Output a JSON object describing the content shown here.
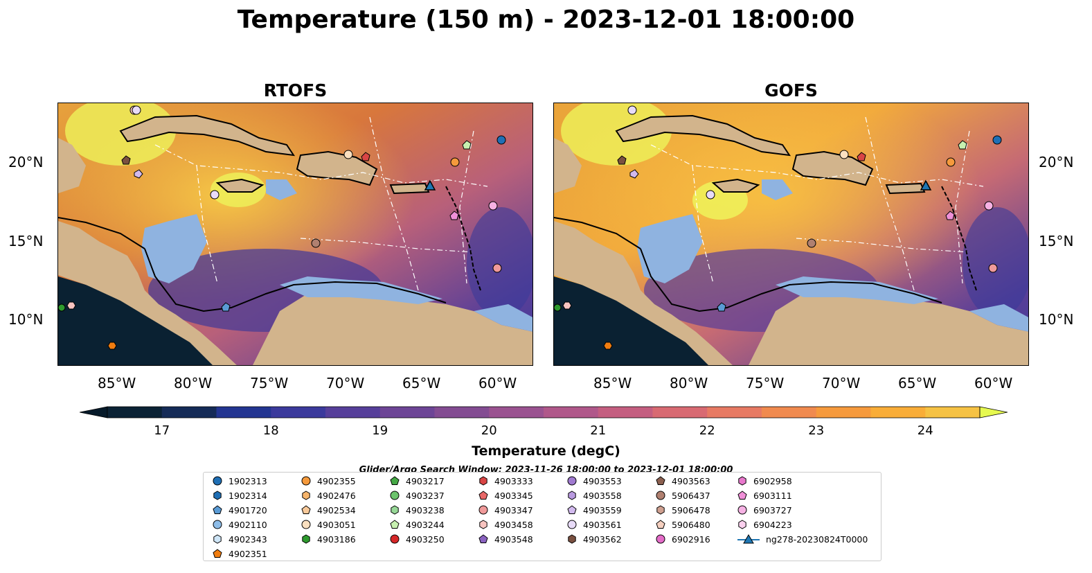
{
  "title": "Temperature (150 m) - 2023-12-01 18:00:00",
  "panels": [
    {
      "title": "RTOFS"
    },
    {
      "title": "GOFS"
    }
  ],
  "axes": {
    "lon_ticks": [
      "85°W",
      "80°W",
      "75°W",
      "70°W",
      "65°W",
      "60°W"
    ],
    "lat_ticks": [
      "20°N",
      "15°N",
      "10°N"
    ]
  },
  "colorbar": {
    "label": "Temperature (degC)",
    "ticks": [
      "17",
      "18",
      "19",
      "20",
      "21",
      "22",
      "23",
      "24"
    ],
    "min": 16.5,
    "max": 24.5,
    "colors": [
      "#0b2235",
      "#152b57",
      "#233591",
      "#3b3a9c",
      "#563f9a",
      "#6d4596",
      "#834c92",
      "#9a5290",
      "#b0588a",
      "#c45e80",
      "#d86a72",
      "#e77a63",
      "#f08a4f",
      "#f69a3d",
      "#f9ad38",
      "#f6c244"
    ],
    "extend_low_color": "#061a2a",
    "extend_high_color": "#e6f94f"
  },
  "map_colors": {
    "land": "#d2b48c",
    "shelf": "#8fb3e0",
    "deep_ocean_cold": "#0a2132"
  },
  "search_window": "Glider/Argo Search Window: 2023-11-26 18:00:00 to 2023-12-01 18:00:00",
  "legend": {
    "columns": [
      [
        {
          "label": "1902313",
          "shape": "circle",
          "color": "#1f6fb5"
        },
        {
          "label": "1902314",
          "shape": "hexagon",
          "color": "#1f6fb5"
        },
        {
          "label": "4901720",
          "shape": "pentagon",
          "color": "#5a9bd5"
        },
        {
          "label": "4902110",
          "shape": "circle",
          "color": "#8ebde8"
        },
        {
          "label": "4902343",
          "shape": "hexagon",
          "color": "#cfe6f8"
        },
        {
          "label": "4902351",
          "shape": "pentagon",
          "color": "#f07d10"
        }
      ],
      [
        {
          "label": "4902355",
          "shape": "circle",
          "color": "#f59a3c"
        },
        {
          "label": "4902476",
          "shape": "hexagon",
          "color": "#f6b56c"
        },
        {
          "label": "4902534",
          "shape": "pentagon",
          "color": "#f8c99a"
        },
        {
          "label": "4903051",
          "shape": "circle",
          "color": "#fbe0c0"
        },
        {
          "label": "4903186",
          "shape": "hexagon",
          "color": "#2e9a2e"
        }
      ],
      [
        {
          "label": "4903217",
          "shape": "pentagon",
          "color": "#45a845"
        },
        {
          "label": "4903237",
          "shape": "circle",
          "color": "#6dc46d"
        },
        {
          "label": "4903238",
          "shape": "hexagon",
          "color": "#97d897"
        },
        {
          "label": "4903244",
          "shape": "pentagon",
          "color": "#c7f0b0"
        },
        {
          "label": "4903250",
          "shape": "circle",
          "color": "#d62728"
        }
      ],
      [
        {
          "label": "4903333",
          "shape": "hexagon",
          "color": "#d94545"
        },
        {
          "label": "4903345",
          "shape": "pentagon",
          "color": "#e86868"
        },
        {
          "label": "4903347",
          "shape": "circle",
          "color": "#f09a9a"
        },
        {
          "label": "4903458",
          "shape": "hexagon",
          "color": "#f8c4c0"
        },
        {
          "label": "4903548",
          "shape": "pentagon",
          "color": "#8a62c0"
        }
      ],
      [
        {
          "label": "4903553",
          "shape": "circle",
          "color": "#a07ad0"
        },
        {
          "label": "4903558",
          "shape": "hexagon",
          "color": "#b99ae0"
        },
        {
          "label": "4903559",
          "shape": "pentagon",
          "color": "#d2baee"
        },
        {
          "label": "4903561",
          "shape": "circle",
          "color": "#e8dbf8"
        },
        {
          "label": "4903562",
          "shape": "hexagon",
          "color": "#7a5040"
        }
      ],
      [
        {
          "label": "4903563",
          "shape": "pentagon",
          "color": "#8c6050"
        },
        {
          "label": "5906437",
          "shape": "circle",
          "color": "#b08070"
        },
        {
          "label": "5906478",
          "shape": "hexagon",
          "color": "#cfa090"
        },
        {
          "label": "5906480",
          "shape": "pentagon",
          "color": "#f5d0c0"
        },
        {
          "label": "6902916",
          "shape": "circle",
          "color": "#e46cc8"
        }
      ],
      [
        {
          "label": "6902958",
          "shape": "hexagon",
          "color": "#e878cc"
        },
        {
          "label": "6903111",
          "shape": "pentagon",
          "color": "#f090d8"
        },
        {
          "label": "6903727",
          "shape": "circle",
          "color": "#f6b2e4"
        },
        {
          "label": "6904223",
          "shape": "hexagon",
          "color": "#fad0ee"
        },
        {
          "label": "ng278-20230824T0000",
          "shape": "triangle-line",
          "color": "#1f77b4"
        }
      ]
    ]
  }
}
